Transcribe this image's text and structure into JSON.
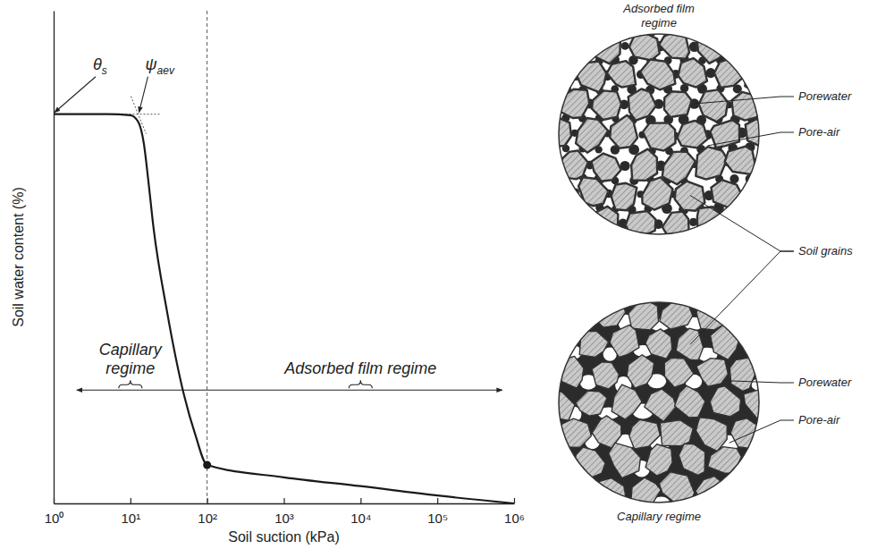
{
  "chart_data": {
    "type": "line",
    "xlabel": "Soil suction (kPa)",
    "ylabel": "Soil water content (%)",
    "log": "x",
    "xlim": [
      1,
      1000000
    ],
    "xticks": [
      {
        "value": 1,
        "label": "10⁰"
      },
      {
        "value": 10,
        "label": "10¹"
      },
      {
        "value": 100,
        "label": "10²"
      },
      {
        "value": 1000,
        "label": "10³"
      },
      {
        "value": 10000,
        "label": "10⁴"
      },
      {
        "value": 100000,
        "label": "10⁵"
      },
      {
        "value": 1000000,
        "label": "10⁶"
      }
    ],
    "ylim": [
      0,
      100
    ],
    "tick_labels": "x",
    "x": [
      1,
      5,
      10,
      12.6,
      15,
      17,
      20,
      30,
      50,
      70,
      100,
      1000,
      10000,
      100000,
      1000000
    ],
    "values": [
      79,
      79,
      78.8,
      77.5,
      73,
      66,
      56,
      39,
      22,
      14,
      7.8,
      5.3,
      3.5,
      1.6,
      0
    ],
    "color": "#1a1a1a",
    "boundary": 100,
    "annotations": [
      {
        "text": "θ",
        "subscript": "s",
        "x": 1,
        "y": 79
      },
      {
        "text": "ψ",
        "subscript": "aev",
        "x": 12.6,
        "y": 79
      }
    ],
    "regimes": [
      {
        "label": "Capillary regime",
        "from": 2,
        "to": 100,
        "y": 23,
        "label_x": 10
      },
      {
        "label": "Adsorbed film regime",
        "from": 100,
        "to": 700000,
        "y": 23,
        "label_x": 10000
      }
    ]
  },
  "diagrams": [
    {
      "title": "Adsorbed film regime",
      "labels": [
        "Porewater",
        "Pore-air"
      ]
    },
    {
      "title": "Capillary regime",
      "labels": [
        "Porewater",
        "Pore-air"
      ]
    }
  ],
  "shared_label": "Soil grains"
}
